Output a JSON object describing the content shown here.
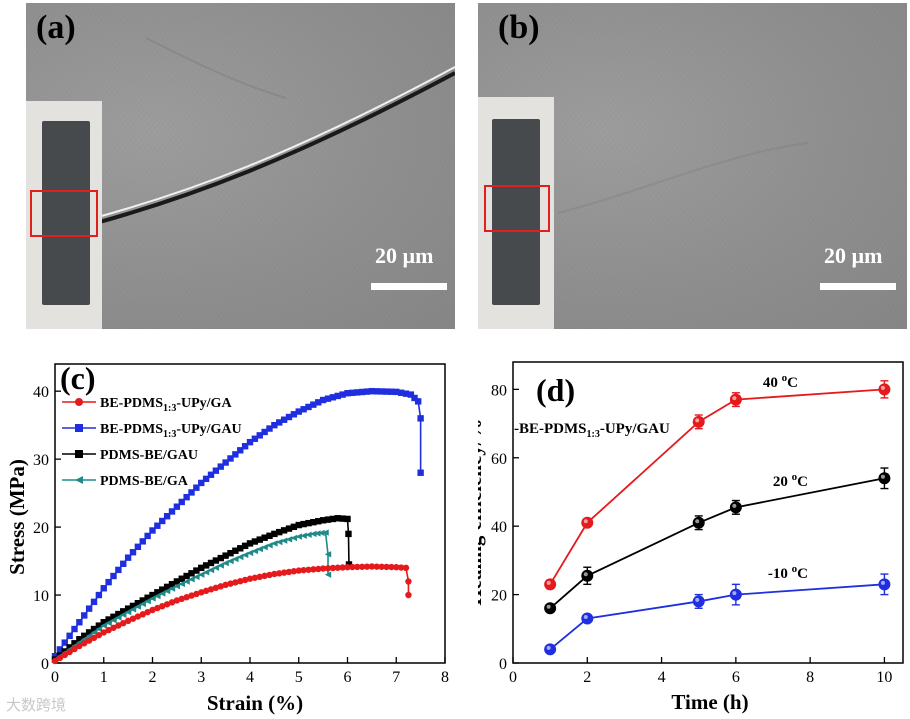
{
  "panels": {
    "a": {
      "label": "(a)",
      "scale_text": "20 µm"
    },
    "b": {
      "label": "(b)",
      "scale_text": "20 µm"
    },
    "c": {
      "label": "(c)"
    },
    "d": {
      "label": "(d)"
    }
  },
  "colors": {
    "red": "#e41a1c",
    "blue": "#1f2fe0",
    "black": "#000000",
    "teal": "#1f8a8a"
  },
  "watermark": "大数跨境",
  "chart_data": [
    {
      "type": "line",
      "panel": "c",
      "title": "",
      "xlabel": "Strain (%)",
      "ylabel": "Stress (MPa)",
      "xlim": [
        0,
        8
      ],
      "ylim": [
        0,
        44
      ],
      "xticks": [
        0,
        1,
        2,
        3,
        4,
        5,
        6,
        7,
        8
      ],
      "yticks": [
        0,
        10,
        20,
        30,
        40
      ],
      "legend": [
        {
          "prefix": "BE-PDMS",
          "sub": "1:3",
          "suffix": "-UPy/GA",
          "color": "#e41a1c",
          "marker": "circle"
        },
        {
          "prefix": "BE-PDMS",
          "sub": "1:3",
          "suffix": "-UPy/GAU",
          "color": "#1f2fe0",
          "marker": "square"
        },
        {
          "prefix": "PDMS-BE/GAU",
          "sub": "",
          "suffix": "",
          "color": "#000000",
          "marker": "square"
        },
        {
          "prefix": "PDMS-BE/GA",
          "sub": "",
          "suffix": "",
          "color": "#1f8a8a",
          "marker": "triangle-left"
        }
      ],
      "series": [
        {
          "name": "BE-PDMS1:3-UPy/GAU",
          "color": "#1f2fe0",
          "marker": "square",
          "x": [
            0,
            0.5,
            1,
            1.5,
            2,
            2.5,
            3,
            3.5,
            4,
            4.5,
            5,
            5.5,
            6,
            6.5,
            7,
            7.3,
            7.45,
            7.5,
            7.5
          ],
          "y": [
            1,
            6,
            11,
            15.5,
            19.5,
            23,
            26.5,
            29.5,
            32.5,
            35,
            37,
            38.7,
            39.7,
            40,
            39.9,
            39.5,
            38.5,
            36,
            28
          ]
        },
        {
          "name": "PDMS-BE/GAU",
          "color": "#000000",
          "marker": "square",
          "x": [
            0,
            0.5,
            1,
            1.5,
            2,
            2.5,
            3,
            3.5,
            4,
            4.5,
            5,
            5.5,
            5.8,
            6,
            6.02,
            6.03
          ],
          "y": [
            0.5,
            3.5,
            6,
            8,
            10,
            12,
            14,
            15.8,
            17.6,
            19,
            20.3,
            21,
            21.3,
            21.2,
            19,
            14.5
          ]
        },
        {
          "name": "PDMS-BE/GA",
          "color": "#1f8a8a",
          "marker": "triangle-left",
          "x": [
            0,
            0.5,
            1,
            1.5,
            2,
            2.5,
            3,
            3.5,
            4,
            4.5,
            5,
            5.3,
            5.55,
            5.6,
            5.6
          ],
          "y": [
            0.5,
            3,
            5.5,
            7.5,
            9.5,
            11.3,
            13,
            14.7,
            16.2,
            17.6,
            18.6,
            19,
            19.2,
            16,
            13
          ]
        },
        {
          "name": "BE-PDMS1:3-UPy/GA",
          "color": "#e41a1c",
          "marker": "circle",
          "x": [
            0,
            0.5,
            1,
            1.5,
            2,
            2.5,
            3,
            3.5,
            4,
            4.5,
            5,
            5.5,
            6,
            6.5,
            7,
            7.2,
            7.25,
            7.25
          ],
          "y": [
            0.3,
            2.5,
            4.5,
            6.2,
            7.8,
            9.2,
            10.4,
            11.5,
            12.4,
            13.1,
            13.6,
            13.9,
            14.1,
            14.2,
            14.1,
            14,
            12,
            10
          ]
        }
      ]
    },
    {
      "type": "line",
      "panel": "d",
      "title": "",
      "xlabel": "Time (h)",
      "ylabel": "Healing efficiency/%",
      "xlim": [
        0,
        10.5
      ],
      "ylim": [
        0,
        88
      ],
      "xticks": [
        0,
        2,
        4,
        6,
        8,
        10
      ],
      "yticks": [
        0,
        20,
        40,
        60,
        80
      ],
      "annotation": {
        "prefix": "BE-PDMS",
        "sub": "1:3",
        "suffix": "-UPy/GAU"
      },
      "series": [
        {
          "name": "40 °C",
          "label_num": "40",
          "label_unit": "C",
          "color": "#e41a1c",
          "x": [
            1,
            2,
            5,
            6,
            10
          ],
          "y": [
            23,
            41,
            70.5,
            77,
            80
          ],
          "err": [
            1.2,
            1,
            2,
            2,
            2.5
          ]
        },
        {
          "name": "20 °C",
          "label_num": "20",
          "label_unit": "C",
          "color": "#000000",
          "x": [
            1,
            2,
            5,
            6,
            10
          ],
          "y": [
            16,
            25.5,
            41,
            45.5,
            54
          ],
          "err": [
            1,
            2.5,
            2,
            2,
            3
          ]
        },
        {
          "name": "-10 °C",
          "label_num": "-10",
          "label_unit": "C",
          "color": "#1f2fe0",
          "x": [
            1,
            2,
            5,
            6,
            10
          ],
          "y": [
            4,
            13,
            18,
            20,
            23
          ],
          "err": [
            0.8,
            1,
            2,
            3,
            3
          ]
        }
      ]
    }
  ]
}
